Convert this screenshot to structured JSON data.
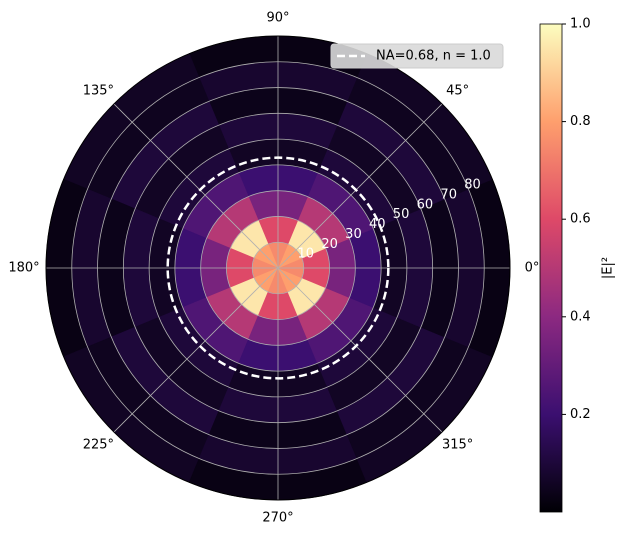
{
  "chart_data": {
    "type": "polar_heatmap",
    "r_bins": [
      0,
      10,
      20,
      30,
      40,
      50,
      60,
      70,
      80,
      90
    ],
    "theta_bins": [
      0,
      22.5,
      45,
      67.5,
      90,
      112.5,
      135,
      157.5,
      180,
      202.5,
      225,
      247.5,
      270,
      292.5,
      315,
      337.5,
      360
    ],
    "values": [
      [
        0.75,
        0.8,
        0.8,
        0.75,
        0.75,
        0.8,
        0.8,
        0.75,
        0.75,
        0.8,
        0.8,
        0.75,
        0.75,
        0.8,
        0.8,
        0.75
      ],
      [
        0.6,
        0.95,
        0.95,
        0.6,
        0.6,
        0.95,
        0.95,
        0.6,
        0.6,
        0.95,
        0.95,
        0.6,
        0.6,
        0.95,
        0.95,
        0.6
      ],
      [
        0.35,
        0.5,
        0.5,
        0.35,
        0.35,
        0.5,
        0.5,
        0.35,
        0.35,
        0.5,
        0.5,
        0.35,
        0.35,
        0.5,
        0.5,
        0.35
      ],
      [
        0.2,
        0.25,
        0.25,
        0.2,
        0.2,
        0.25,
        0.25,
        0.2,
        0.2,
        0.25,
        0.25,
        0.2,
        0.2,
        0.25,
        0.25,
        0.2
      ],
      [
        0.06,
        0.1,
        0.1,
        0.06,
        0.06,
        0.1,
        0.1,
        0.06,
        0.06,
        0.1,
        0.1,
        0.06,
        0.06,
        0.1,
        0.1,
        0.06
      ],
      [
        0.1,
        0.06,
        0.06,
        0.1,
        0.1,
        0.06,
        0.06,
        0.1,
        0.1,
        0.06,
        0.06,
        0.1,
        0.1,
        0.06,
        0.06,
        0.1
      ],
      [
        0.04,
        0.1,
        0.1,
        0.04,
        0.04,
        0.1,
        0.1,
        0.04,
        0.04,
        0.1,
        0.1,
        0.04,
        0.04,
        0.1,
        0.1,
        0.04
      ],
      [
        0.08,
        0.05,
        0.05,
        0.08,
        0.08,
        0.05,
        0.05,
        0.08,
        0.08,
        0.05,
        0.05,
        0.08,
        0.08,
        0.05,
        0.05,
        0.08
      ],
      [
        0.03,
        0.06,
        0.06,
        0.03,
        0.03,
        0.06,
        0.06,
        0.03,
        0.03,
        0.06,
        0.06,
        0.03,
        0.03,
        0.06,
        0.06,
        0.03
      ]
    ],
    "rlim": [
      0,
      90
    ],
    "rticks": [
      10,
      20,
      30,
      40,
      50,
      60,
      70,
      80
    ],
    "rlabel_angle": 22.5,
    "thetaticks": [
      {
        "value": 0,
        "label": "0°"
      },
      {
        "value": 45,
        "label": "45°"
      },
      {
        "value": 90,
        "label": "90°"
      },
      {
        "value": 135,
        "label": "135°"
      },
      {
        "value": 180,
        "label": "180°"
      },
      {
        "value": 225,
        "label": "225°"
      },
      {
        "value": 270,
        "label": "270°"
      },
      {
        "value": 315,
        "label": "315°"
      }
    ],
    "grid": true,
    "overlay": {
      "name": "NA=0.68, n = 1.0",
      "r": 42.8,
      "color": "#ffffff"
    },
    "legend": "upper right",
    "colormap": [
      "#000004",
      "#3b0f70",
      "#8c2981",
      "#de4968",
      "#fe9f6d",
      "#fcfdbf"
    ],
    "clim": [
      0,
      1
    ],
    "cticks": [
      0.2,
      0.4,
      0.6,
      0.8,
      {
        "value": 1,
        "label": "1.0"
      }
    ],
    "colorbar_label": "|E|²"
  }
}
